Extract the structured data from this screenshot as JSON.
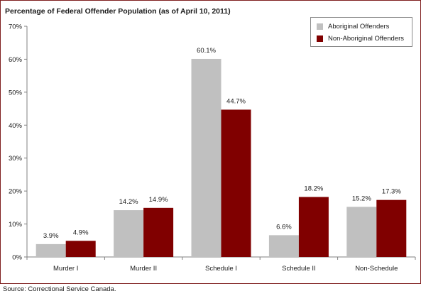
{
  "chart_data": {
    "type": "bar",
    "title": "Percentage of Federal Offender Population (as of April 10, 2011)",
    "xlabel": "",
    "ylabel": "",
    "categories": [
      "Murder I",
      "Murder II",
      "Schedule I",
      "Schedule II",
      "Non-Schedule"
    ],
    "series": [
      {
        "name": "Aboriginal Offenders",
        "color": "#c0c0c0",
        "values": [
          3.9,
          14.2,
          60.1,
          6.6,
          15.2
        ],
        "labels": [
          "3.9%",
          "14.2%",
          "60.1%",
          "6.6%",
          "15.2%"
        ]
      },
      {
        "name": "Non-Aboriginal Offenders",
        "color": "#800000",
        "values": [
          4.9,
          14.9,
          44.7,
          18.2,
          17.3
        ],
        "labels": [
          "4.9%",
          "14.9%",
          "44.7%",
          "18.2%",
          "17.3%"
        ]
      }
    ],
    "ylim": [
      0,
      70
    ],
    "yticks": [
      0,
      10,
      20,
      30,
      40,
      50,
      60,
      70
    ],
    "ytick_labels": [
      "0%",
      "10%",
      "20%",
      "30%",
      "40%",
      "50%",
      "60%",
      "70%"
    ],
    "grid": false,
    "legend_position": "top-right",
    "source": "Source:  Correctional Service Canada."
  }
}
